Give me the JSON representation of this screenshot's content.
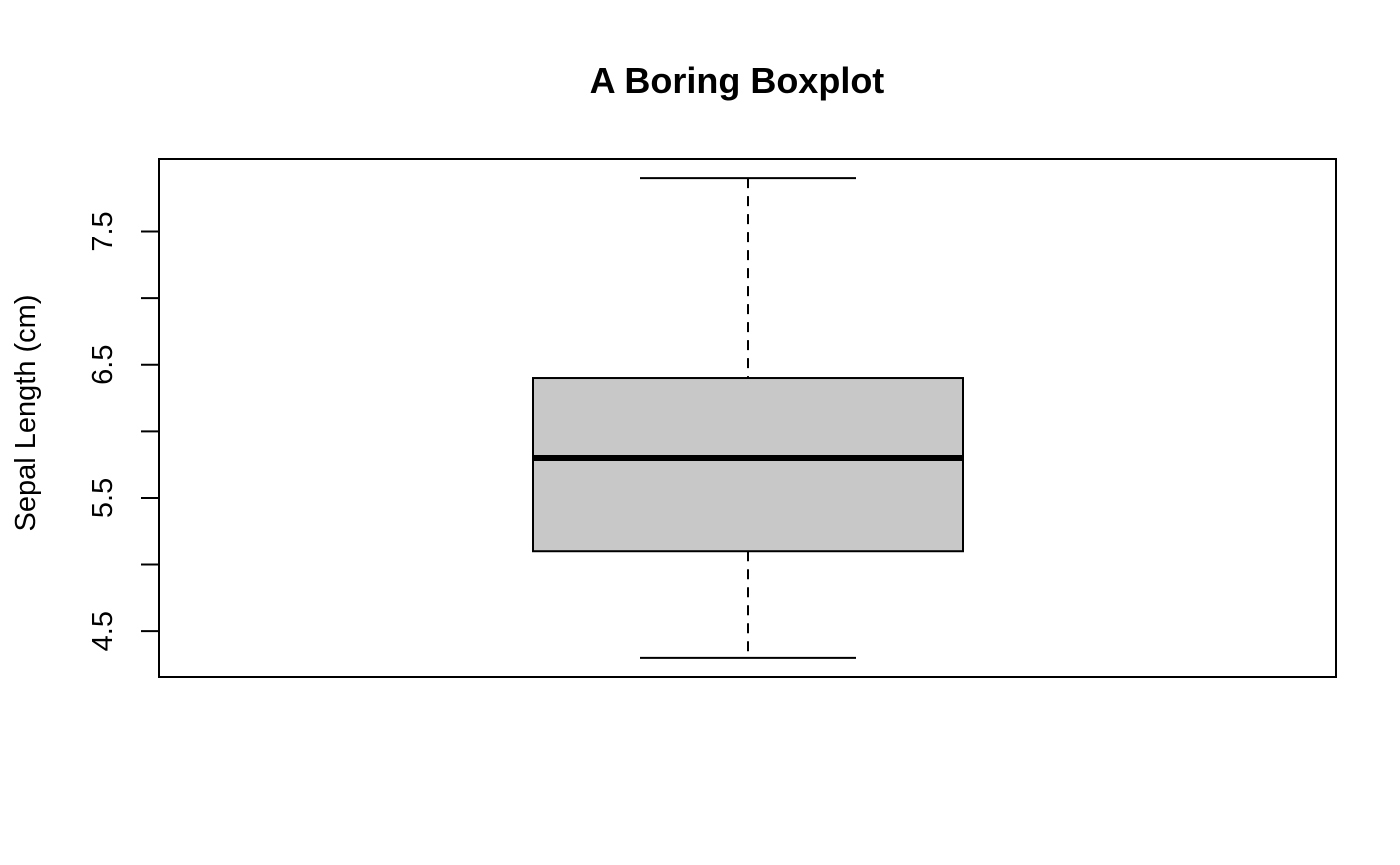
{
  "chart_data": {
    "type": "boxplot",
    "title": "A Boring Boxplot",
    "xlabel": "",
    "ylabel": "Sepal Length (cm)",
    "ylim": [
      4.3,
      7.9
    ],
    "y_ticks": [
      4.5,
      5.5,
      6.5,
      7.5
    ],
    "y_tick_labels": [
      "4.5",
      "5.5",
      "6.5",
      "7.5"
    ],
    "y_minor_ticks": [
      5.0,
      6.0,
      7.0
    ],
    "grid": false,
    "legend": "none",
    "box": {
      "min": 4.3,
      "q1": 5.1,
      "median": 5.8,
      "q3": 6.4,
      "max": 7.9
    },
    "colors": {
      "box_fill": "#c8c8c8",
      "stroke": "#000000",
      "background": "#ffffff"
    }
  }
}
